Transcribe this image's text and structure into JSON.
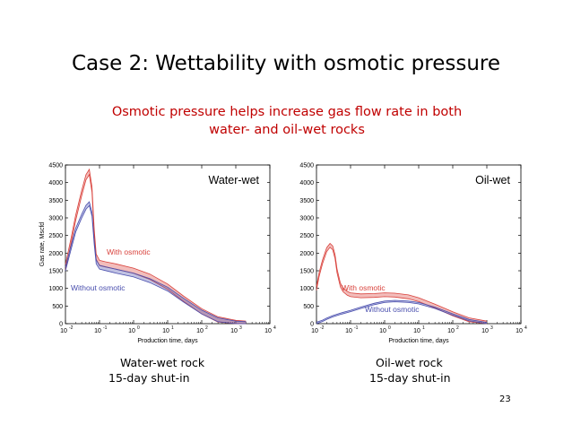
{
  "slide": {
    "title": "Case 2: Wettability with osmotic pressure",
    "subtitle_line1": "Osmotic pressure helps increase gas flow rate in both",
    "subtitle_line2": "water- and oil-wet rocks",
    "page_number": "23",
    "left_caption_line1": "Water-wet rock",
    "left_caption_line2": "15-day shut-in",
    "right_caption_line1": "Oil-wet rock",
    "right_caption_line2": "15-day shut-in"
  },
  "colors": {
    "with_osmotic": "#d9423c",
    "without_osmotic": "#4a4fae",
    "axis": "#000000",
    "grid": "#bbbbbb"
  },
  "chart_data": [
    {
      "type": "line",
      "title": "Water-wet",
      "xlabel": "Production time, days",
      "ylabel": "Gas rate, Mscfd",
      "xscale": "log",
      "xlim": [
        0.01,
        10000
      ],
      "ylim": [
        0,
        4500
      ],
      "x_ticks": [
        "10",
        "10",
        "10",
        "10",
        "10",
        "10",
        "10"
      ],
      "x_tick_exponents": [
        "-2",
        "-1",
        "0",
        "1",
        "2",
        "3",
        "4"
      ],
      "x_tick_values": [
        0.01,
        0.1,
        1,
        10,
        100,
        1000,
        10000
      ],
      "y_ticks": [
        0,
        500,
        1000,
        1500,
        2000,
        2500,
        3000,
        3500,
        4000,
        4500
      ],
      "series": [
        {
          "name": "With osmotic",
          "x": [
            0.01,
            0.015,
            0.02,
            0.03,
            0.04,
            0.05,
            0.06,
            0.07,
            0.08,
            0.1,
            0.15,
            0.3,
            1,
            3,
            10,
            30,
            100,
            300,
            1000,
            2000
          ],
          "y": [
            1600,
            2400,
            3000,
            3700,
            4150,
            4300,
            3800,
            2600,
            1900,
            1720,
            1680,
            1620,
            1500,
            1330,
            1050,
            700,
            350,
            120,
            20,
            0
          ],
          "band": 150
        },
        {
          "name": "Without osmotic",
          "x": [
            0.01,
            0.015,
            0.02,
            0.03,
            0.04,
            0.05,
            0.06,
            0.07,
            0.08,
            0.1,
            0.15,
            0.3,
            1,
            3,
            10,
            30,
            100,
            300,
            1000,
            2000
          ],
          "y": [
            1550,
            2200,
            2650,
            3050,
            3300,
            3400,
            3100,
            2300,
            1750,
            1600,
            1560,
            1490,
            1380,
            1220,
            980,
            660,
            330,
            110,
            15,
            0
          ],
          "band": 110
        }
      ],
      "annotations": [
        "With osmotic",
        "Without osmotic"
      ]
    },
    {
      "type": "line",
      "title": "Oil-wet",
      "xlabel": "Production time, days",
      "ylabel": "",
      "xscale": "log",
      "xlim": [
        0.01,
        10000
      ],
      "ylim": [
        0,
        4500
      ],
      "x_ticks": [
        "10",
        "10",
        "10",
        "10",
        "10",
        "10",
        "10"
      ],
      "x_tick_exponents": [
        "-2",
        "-1",
        "0",
        "1",
        "2",
        "3",
        "4"
      ],
      "x_tick_values": [
        0.01,
        0.1,
        1,
        10,
        100,
        1000,
        10000
      ],
      "y_ticks": [
        0,
        500,
        1000,
        1500,
        2000,
        2500,
        3000,
        3500,
        4000,
        4500
      ],
      "series": [
        {
          "name": "With osmotic",
          "x": [
            0.01,
            0.012,
            0.015,
            0.02,
            0.025,
            0.03,
            0.035,
            0.04,
            0.05,
            0.06,
            0.08,
            0.1,
            0.2,
            0.5,
            1,
            2,
            5,
            10,
            30,
            100,
            300,
            1000
          ],
          "y": [
            1000,
            1400,
            1750,
            2100,
            2220,
            2150,
            1900,
            1500,
            1100,
            960,
            860,
            820,
            790,
            800,
            820,
            810,
            760,
            680,
            500,
            280,
            110,
            15
          ],
          "band": 110
        },
        {
          "name": "Without osmotic",
          "x": [
            0.01,
            0.015,
            0.02,
            0.03,
            0.05,
            0.1,
            0.2,
            0.5,
            1,
            2,
            5,
            10,
            30,
            100,
            300,
            1000
          ],
          "y": [
            20,
            80,
            140,
            210,
            280,
            360,
            450,
            560,
            620,
            640,
            620,
            580,
            450,
            260,
            100,
            15
          ],
          "band": 40
        }
      ],
      "annotations": [
        "With osmotic",
        "Without osmotic"
      ]
    }
  ]
}
